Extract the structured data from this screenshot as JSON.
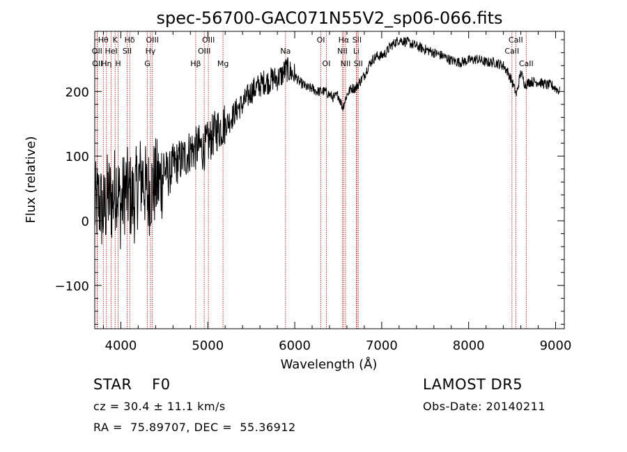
{
  "chart_data": {
    "type": "line",
    "title": "spec-56700-GAC071N55V2_sp06-066.fits",
    "xlabel": "Wavelength (Å)",
    "ylabel": "Flux (relative)",
    "xlim": [
      3700,
      9100
    ],
    "ylim": [
      -167,
      293
    ],
    "xticks": [
      4000,
      5000,
      6000,
      7000,
      8000,
      9000
    ],
    "yticks": [
      -100,
      0,
      100,
      200
    ],
    "grid": false,
    "series": [
      {
        "color": "#000000",
        "x": [
          3700,
          3750,
          3800,
          3850,
          3900,
          3950,
          4000,
          4050,
          4100,
          4150,
          4200,
          4250,
          4300,
          4350,
          4400,
          4450,
          4500,
          4550,
          4600,
          4650,
          4700,
          4750,
          4800,
          4850,
          4900,
          4950,
          5000,
          5050,
          5100,
          5150,
          5200,
          5250,
          5300,
          5350,
          5400,
          5450,
          5500,
          5550,
          5600,
          5650,
          5700,
          5750,
          5800,
          5850,
          5900,
          5950,
          6000,
          6050,
          6100,
          6150,
          6200,
          6250,
          6300,
          6350,
          6400,
          6450,
          6500,
          6550,
          6600,
          6650,
          6700,
          6750,
          6800,
          6850,
          6900,
          6950,
          7000,
          7050,
          7100,
          7150,
          7200,
          7300,
          7400,
          7500,
          7600,
          7700,
          7800,
          7900,
          8000,
          8100,
          8200,
          8300,
          8400,
          8450,
          8500,
          8550,
          8600,
          8650,
          8700,
          8800,
          8900,
          8950,
          9000,
          9050
        ],
        "y": [
          20,
          30,
          10,
          40,
          30,
          60,
          20,
          50,
          40,
          30,
          60,
          70,
          40,
          50,
          60,
          60,
          80,
          70,
          85,
          90,
          95,
          100,
          110,
          110,
          115,
          110,
          120,
          130,
          140,
          145,
          150,
          155,
          165,
          175,
          180,
          190,
          200,
          205,
          210,
          215,
          215,
          220,
          220,
          225,
          235,
          230,
          225,
          215,
          210,
          205,
          205,
          200,
          200,
          200,
          195,
          190,
          195,
          175,
          195,
          205,
          205,
          215,
          225,
          240,
          250,
          255,
          255,
          260,
          270,
          275,
          280,
          276,
          270,
          265,
          260,
          255,
          248,
          245,
          248,
          250,
          245,
          245,
          240,
          230,
          215,
          195,
          230,
          210,
          215,
          215,
          210,
          210,
          205,
          200
        ]
      }
    ],
    "lines": [
      {
        "name": "Hθ",
        "x": 3798,
        "row": 1
      },
      {
        "name": "OII",
        "x": 3727,
        "row": 2
      },
      {
        "name": "OII",
        "x": 3730,
        "row": 3
      },
      {
        "name": "K",
        "x": 3934,
        "row": 1
      },
      {
        "name": "HeI",
        "x": 3889,
        "row": 2
      },
      {
        "name": "Hη",
        "x": 3835,
        "row": 3
      },
      {
        "name": "H",
        "x": 3969,
        "row": 3
      },
      {
        "name": "Hδ",
        "x": 4102,
        "row": 1
      },
      {
        "name": "SII",
        "x": 4072,
        "row": 2
      },
      {
        "name": "OIII",
        "x": 4363,
        "row": 1
      },
      {
        "name": "Hγ",
        "x": 4341,
        "row": 2
      },
      {
        "name": "G",
        "x": 4305,
        "row": 3
      },
      {
        "name": "Hβ",
        "x": 4861,
        "row": 3
      },
      {
        "name": "OIII",
        "x": 5007,
        "row": 1
      },
      {
        "name": "OIII",
        "x": 4959,
        "row": 2
      },
      {
        "name": "Mg",
        "x": 5175,
        "row": 3
      },
      {
        "name": "Na",
        "x": 5894,
        "row": 2
      },
      {
        "name": "OI",
        "x": 6300,
        "row": 1
      },
      {
        "name": "OI",
        "x": 6364,
        "row": 3
      },
      {
        "name": "Hα",
        "x": 6563,
        "row": 1
      },
      {
        "name": "SII",
        "x": 6716,
        "row": 1
      },
      {
        "name": "NII",
        "x": 6548,
        "row": 2
      },
      {
        "name": "Li",
        "x": 6708,
        "row": 2
      },
      {
        "name": "NII",
        "x": 6584,
        "row": 3
      },
      {
        "name": "SII",
        "x": 6731,
        "row": 3
      },
      {
        "name": "CaII",
        "x": 8542,
        "row": 1
      },
      {
        "name": "CaII",
        "x": 8498,
        "row": 2
      },
      {
        "name": "CaII",
        "x": 8662,
        "row": 3
      }
    ]
  },
  "info": {
    "class_line": "STAR    F0",
    "survey": "LAMOST DR5",
    "cz": "cz = 30.4 ± 11.1 km/s",
    "obs_date": "Obs-Date: 20140211",
    "coords": "RA =  75.89707, DEC =  55.36912"
  }
}
